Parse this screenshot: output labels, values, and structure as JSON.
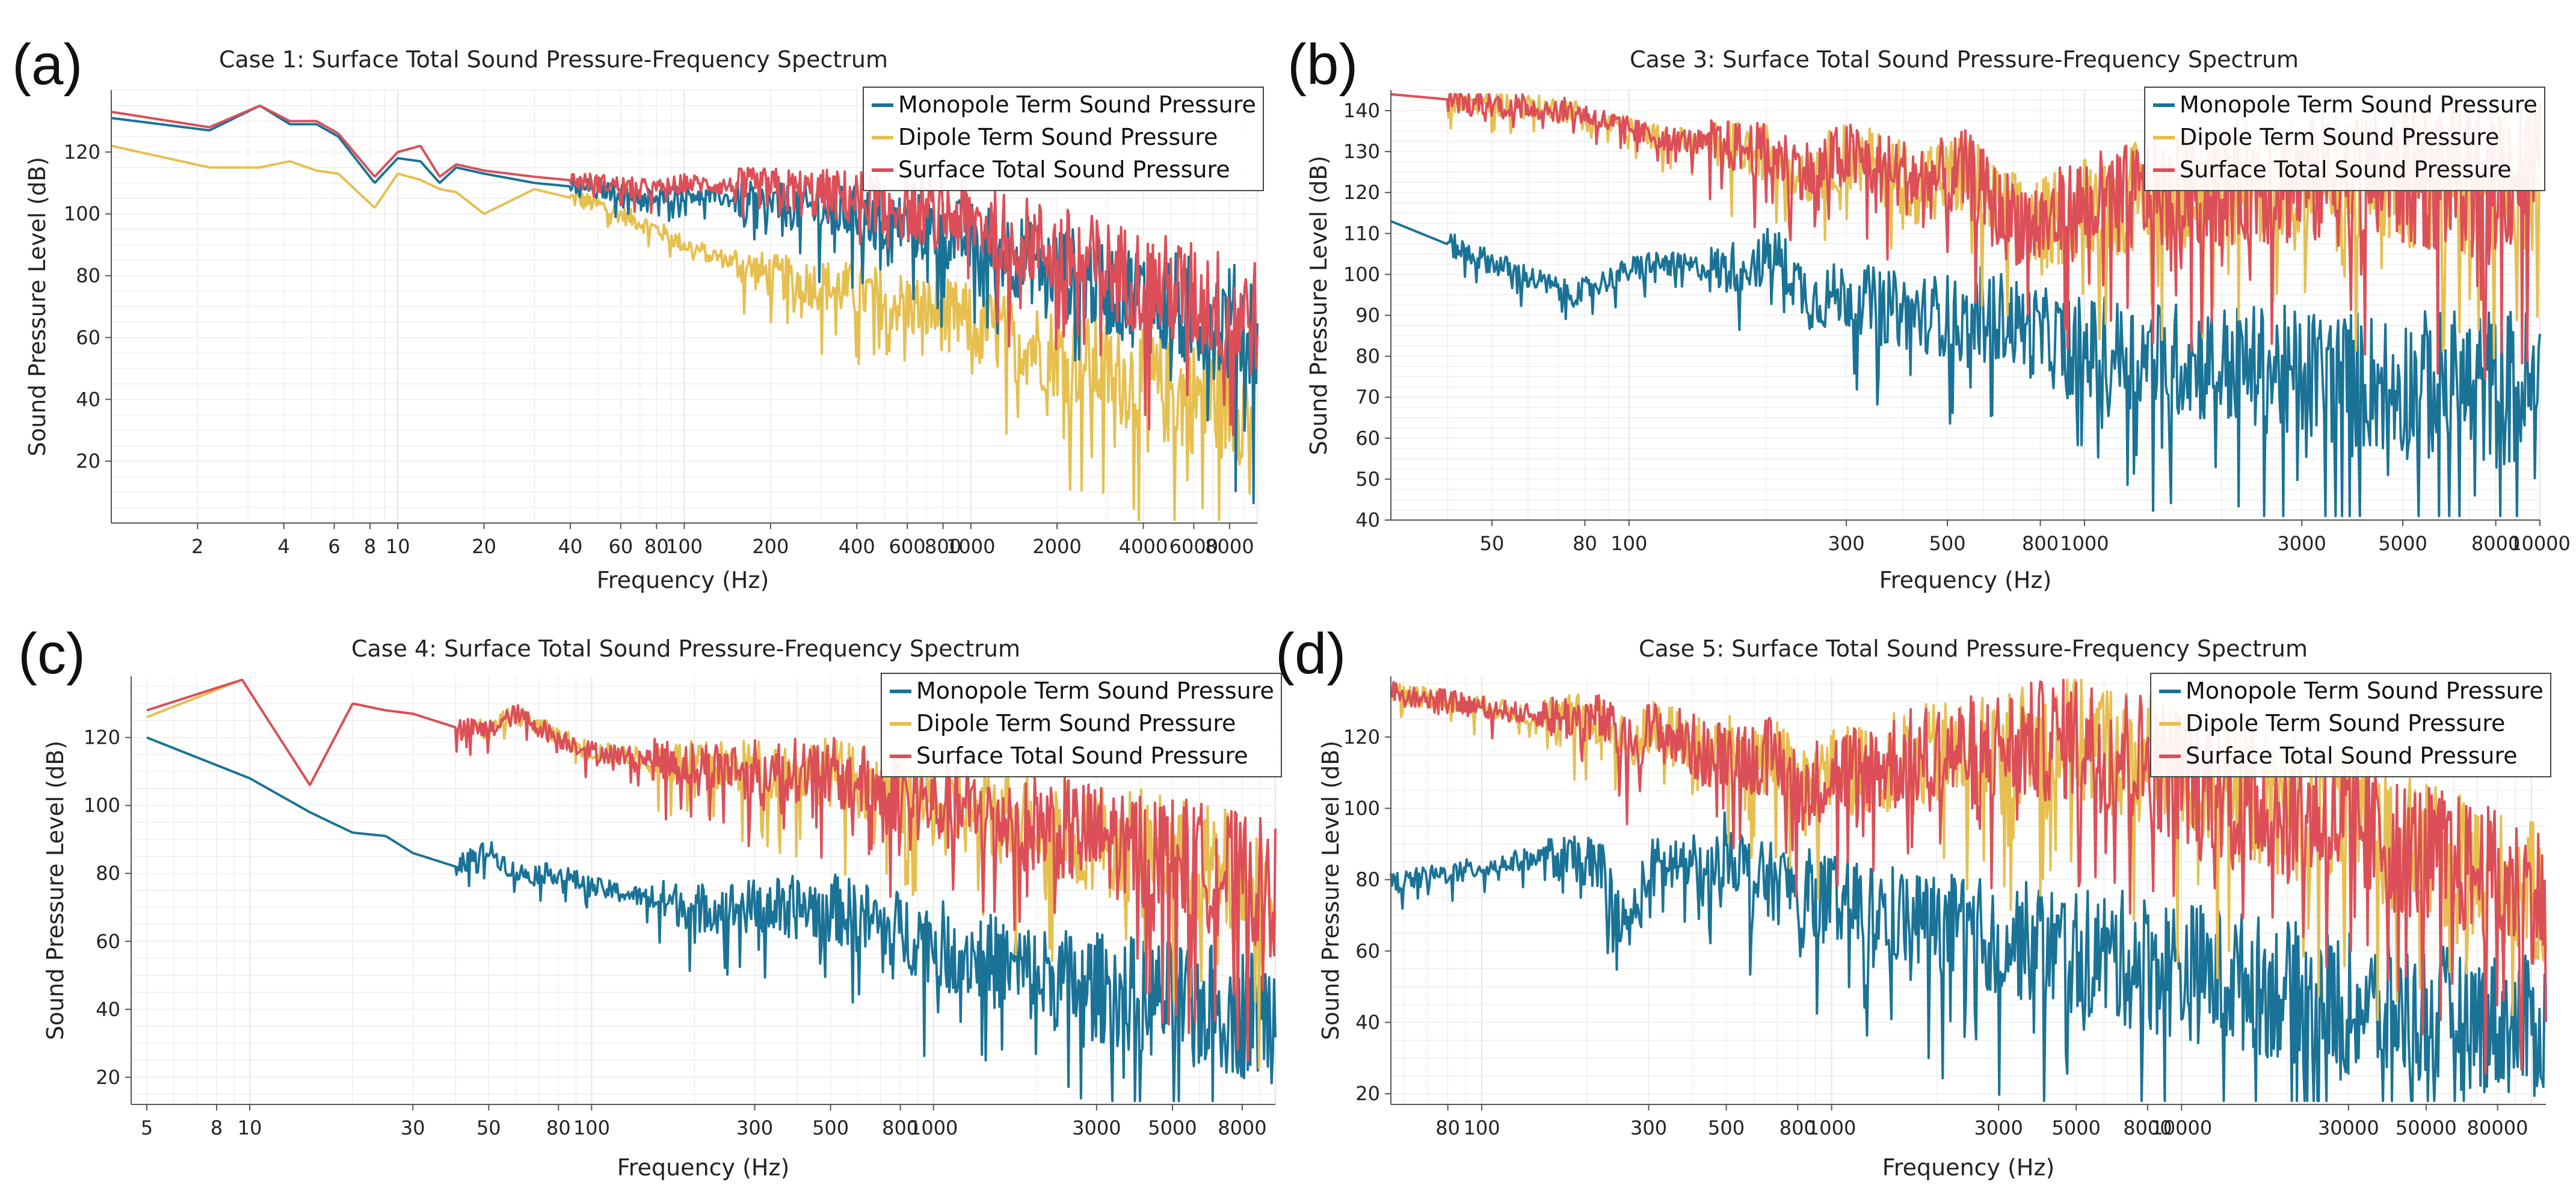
{
  "figure": {
    "colors": {
      "monopole": "#1a7397",
      "dipole": "#e6bf4f",
      "total": "#dc4f58",
      "grid": "#e6e6e6",
      "axis": "#555555"
    }
  },
  "chart_data": [
    {
      "panel": "(a)",
      "type": "line",
      "title": "Case 1: Surface Total Sound Pressure-Frequency Spectrum",
      "xlabel": "Frequency (Hz)",
      "ylabel": "Sound Pressure Level (dB)",
      "xscale": "log",
      "xlim": [
        1,
        10000
      ],
      "ylim": [
        0,
        140
      ],
      "xticks": [
        2,
        4,
        6,
        8,
        10,
        20,
        40,
        60,
        80,
        100,
        200,
        400,
        600,
        800,
        1000,
        2000,
        4000,
        6000,
        8000
      ],
      "xtick_labels": [
        "2",
        "4",
        "6",
        "8",
        "10",
        "20",
        "40",
        "60",
        "80",
        "100",
        "200",
        "400",
        "600",
        "800",
        "1000",
        "2000",
        "4000",
        "6000",
        "8000"
      ],
      "yticks": [
        20,
        40,
        60,
        80,
        100,
        120
      ],
      "legend_position": "top-right",
      "series": [
        {
          "name": "Monopole Term Sound Pressure",
          "color_key": "monopole",
          "x": [
            1,
            2.2,
            3.3,
            4.2,
            5.2,
            6.2,
            8.3,
            10,
            12,
            14,
            16,
            20,
            30,
            50,
            80,
            100,
            200,
            400,
            1000,
            2000,
            5000,
            10000
          ],
          "y": [
            131,
            127,
            135,
            129,
            129,
            125,
            110,
            118,
            117,
            110,
            115,
            113,
            110,
            108,
            105,
            107,
            103,
            100,
            92,
            82,
            70,
            62
          ]
        },
        {
          "name": "Dipole Term Sound Pressure",
          "color_key": "dipole",
          "x": [
            1,
            2.2,
            3.3,
            4.2,
            5.2,
            6.2,
            8.3,
            10,
            12,
            14,
            16,
            20,
            30,
            50,
            80,
            100,
            200,
            400,
            1000,
            2000,
            5000,
            10000
          ],
          "y": [
            122,
            115,
            115,
            117,
            114,
            113,
            102,
            113,
            111,
            108,
            107,
            100,
            108,
            103,
            95,
            90,
            80,
            75,
            65,
            55,
            42,
            38
          ]
        },
        {
          "name": "Surface Total Sound Pressure",
          "color_key": "total",
          "x": [
            1,
            2.2,
            3.3,
            4.2,
            5.2,
            6.2,
            8.3,
            10,
            12,
            14,
            16,
            20,
            30,
            50,
            80,
            100,
            200,
            400,
            1000,
            2000,
            5000,
            10000
          ],
          "y": [
            133,
            128,
            135,
            130,
            130,
            126,
            112,
            120,
            122,
            112,
            116,
            114,
            112,
            110,
            108,
            110,
            108,
            105,
            98,
            88,
            75,
            66
          ]
        }
      ]
    },
    {
      "panel": "(b)",
      "type": "line",
      "title": "Case 3: Surface Total Sound Pressure-Frequency Spectrum",
      "xlabel": "Frequency (Hz)",
      "ylabel": "Sound Pressure Level (dB)",
      "xscale": "log",
      "xlim": [
        30,
        10000
      ],
      "ylim": [
        40,
        145
      ],
      "xticks": [
        50,
        80,
        100,
        300,
        500,
        800,
        1000,
        3000,
        5000,
        8000,
        10000
      ],
      "xtick_labels": [
        "50",
        "80",
        "100",
        "300",
        "500",
        "800",
        "1000",
        "3000",
        "5000",
        "8000",
        "10000"
      ],
      "yticks": [
        40,
        50,
        60,
        70,
        80,
        90,
        100,
        110,
        120,
        130,
        140
      ],
      "legend_position": "top-right",
      "series": [
        {
          "name": "Monopole Term Sound Pressure",
          "color_key": "monopole",
          "x": [
            30,
            75,
            110,
            160,
            210,
            250,
            300,
            400,
            500,
            550,
            600,
            800,
            1000,
            2000,
            5000,
            10000
          ],
          "y": [
            113,
            95,
            103,
            101,
            105,
            94,
            95,
            91,
            90,
            87,
            92,
            85,
            82,
            78,
            73,
            72
          ]
        },
        {
          "name": "Dipole Term Sound Pressure",
          "color_key": "dipole",
          "x": [
            30,
            75,
            110,
            200,
            250,
            300,
            400,
            500,
            550,
            650,
            800,
            1000,
            2000,
            5000,
            10000
          ],
          "y": [
            144,
            140,
            134,
            130,
            125,
            129,
            124,
            123,
            125,
            115,
            112,
            117,
            122,
            124,
            125
          ]
        },
        {
          "name": "Surface Total Sound Pressure",
          "color_key": "total",
          "x": [
            30,
            75,
            110,
            200,
            250,
            300,
            400,
            500,
            550,
            650,
            800,
            1000,
            2000,
            5000,
            10000
          ],
          "y": [
            144,
            140,
            134,
            130,
            125,
            129,
            124,
            123,
            125,
            115,
            112,
            117,
            122,
            124,
            125
          ]
        }
      ]
    },
    {
      "panel": "(c)",
      "type": "line",
      "title": "Case 4: Surface Total Sound Pressure-Frequency Spectrum",
      "xlabel": "Frequency (Hz)",
      "ylabel": "Sound Pressure Level (dB)",
      "xscale": "log",
      "xlim": [
        4.5,
        10000
      ],
      "ylim": [
        12,
        138
      ],
      "xticks": [
        5,
        8,
        10,
        30,
        50,
        80,
        100,
        300,
        500,
        800,
        1000,
        3000,
        5000,
        8000
      ],
      "xtick_labels": [
        "5",
        "8",
        "10",
        "30",
        "50",
        "80",
        "100",
        "300",
        "500",
        "800",
        "1000",
        "3000",
        "5000",
        "8000"
      ],
      "yticks": [
        20,
        40,
        60,
        80,
        100,
        120
      ],
      "legend_position": "top-right",
      "series": [
        {
          "name": "Monopole Term Sound Pressure",
          "color_key": "monopole",
          "x": [
            5,
            10,
            15,
            20,
            25,
            30,
            40,
            50,
            60,
            80,
            100,
            200,
            500,
            1000,
            2000,
            5000,
            10000
          ],
          "y": [
            120,
            108,
            98,
            92,
            91,
            86,
            82,
            87,
            80,
            80,
            76,
            70,
            70,
            60,
            50,
            42,
            38
          ]
        },
        {
          "name": "Dipole Term Sound Pressure",
          "color_key": "dipole",
          "x": [
            5,
            9.5,
            15,
            20,
            25,
            30,
            40,
            50,
            60,
            80,
            100,
            200,
            500,
            1000,
            2000,
            5000,
            10000
          ],
          "y": [
            126,
            137,
            106,
            130,
            128,
            127,
            123,
            122,
            127,
            120,
            116,
            112,
            110,
            100,
            95,
            85,
            75
          ]
        },
        {
          "name": "Surface Total Sound Pressure",
          "color_key": "total",
          "x": [
            5,
            9.5,
            15,
            20,
            25,
            30,
            40,
            50,
            60,
            80,
            100,
            200,
            500,
            1000,
            2000,
            5000,
            10000
          ],
          "y": [
            128,
            137,
            106,
            130,
            128,
            127,
            123,
            122,
            127,
            120,
            116,
            112,
            110,
            100,
            95,
            85,
            75
          ]
        }
      ]
    },
    {
      "panel": "(d)",
      "type": "line",
      "title": "Case 5: Surface Total Sound Pressure-Frequency Spectrum",
      "xlabel": "Frequency (Hz)",
      "ylabel": "Sound Pressure Level (dB)",
      "xscale": "log",
      "xlim": [
        55,
        110000
      ],
      "ylim": [
        17,
        137
      ],
      "xticks": [
        80,
        100,
        300,
        500,
        800,
        1000,
        3000,
        5000,
        8000,
        10000,
        30000,
        50000,
        80000
      ],
      "xtick_labels": [
        "80",
        "100",
        "300",
        "500",
        "800",
        "1000",
        "3000",
        "5000",
        "8000",
        "10000",
        "30000",
        "50000",
        "80000"
      ],
      "yticks": [
        20,
        40,
        60,
        80,
        100,
        120
      ],
      "legend_position": "top-right",
      "series": [
        {
          "name": "Monopole Term Sound Pressure",
          "color_key": "monopole",
          "x": [
            55,
            140,
            220,
            260,
            300,
            380,
            450,
            500,
            600,
            700,
            1000,
            2000,
            5000,
            10000,
            30000,
            110000
          ],
          "y": [
            79,
            86,
            85,
            65,
            83,
            85,
            80,
            90,
            80,
            79,
            75,
            67,
            60,
            55,
            45,
            38
          ]
        },
        {
          "name": "Dipole Term Sound Pressure",
          "color_key": "dipole",
          "x": [
            55,
            140,
            220,
            260,
            300,
            380,
            450,
            500,
            600,
            700,
            800,
            1000,
            2000,
            5000,
            10000,
            30000,
            110000
          ],
          "y": [
            133,
            126,
            125,
            117,
            122,
            119,
            114,
            116,
            115,
            114,
            105,
            110,
            115,
            120,
            110,
            95,
            75
          ]
        },
        {
          "name": "Surface Total Sound Pressure",
          "color_key": "total",
          "x": [
            55,
            140,
            220,
            260,
            300,
            380,
            450,
            500,
            600,
            700,
            800,
            1000,
            2000,
            5000,
            10000,
            30000,
            110000
          ],
          "y": [
            133,
            126,
            125,
            117,
            122,
            119,
            114,
            116,
            115,
            114,
            105,
            110,
            115,
            120,
            110,
            95,
            75
          ]
        }
      ]
    }
  ]
}
